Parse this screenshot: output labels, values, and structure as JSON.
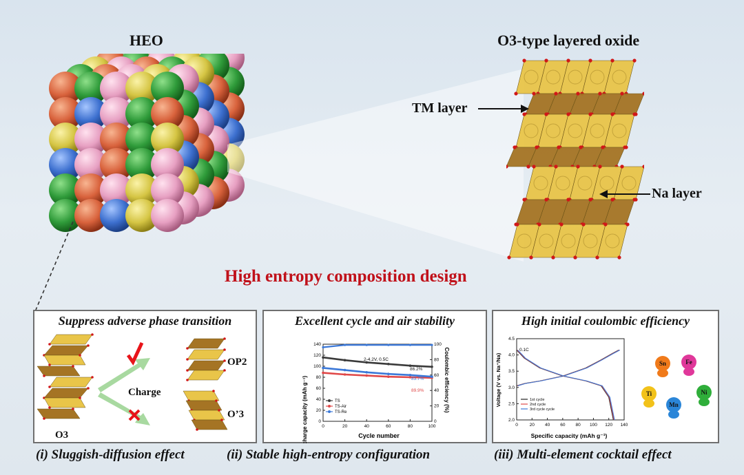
{
  "heo_title": "HEO",
  "o3_title": "O3-type layered oxide",
  "tm_layer_label": "TM layer",
  "na_layer_label": "Na layer",
  "center_title": "High entropy composition design",
  "colors": {
    "accent_red": "#c0111a",
    "yellow": "#d9cc55",
    "green": "#2f9b3a",
    "orange": "#d8623c",
    "pink": "#e7a0c2",
    "blue": "#3d70cf"
  },
  "panel1": {
    "title": "Suppress adverse phase transition",
    "charge_label": "Charge",
    "op2_label": "OP2",
    "o3p_label": "O’3",
    "o3_label": "O3"
  },
  "panel2": {
    "title": "Excellent cycle and air stability",
    "chart_data": {
      "type": "scatter",
      "xlabel": "Cycle number",
      "ylabel": "Discharge capacity (mAh g⁻¹)",
      "y2label": "Coulombic efficiency (%)",
      "xlim": [
        0,
        100
      ],
      "ylim": [
        0,
        140
      ],
      "y2lim": [
        0,
        100
      ],
      "xticks": [
        "0",
        "20",
        "40",
        "60",
        "80",
        "100"
      ],
      "yticks": [
        "0",
        "20",
        "40",
        "60",
        "80",
        "100",
        "120",
        "140"
      ],
      "y2ticks": [
        "0",
        "20",
        "40",
        "60",
        "80",
        "100"
      ],
      "condition": "2-4.2V, 0.5C",
      "annotations": [
        "86.2%",
        "83.7%",
        "89.9%"
      ],
      "series": [
        {
          "name": "TS",
          "color": "#3a3a3a",
          "x": [
            0,
            20,
            40,
            60,
            80,
            100
          ],
          "capacity": [
            116,
            111,
            107,
            104,
            101,
            99
          ]
        },
        {
          "name": "TS-Air",
          "color": "#e04848",
          "x": [
            0,
            20,
            40,
            60,
            80,
            100
          ],
          "capacity": [
            88,
            85,
            83,
            81,
            80,
            79
          ]
        },
        {
          "name": "TS-Re",
          "color": "#3b78d8",
          "x": [
            0,
            20,
            40,
            60,
            80,
            100
          ],
          "capacity": [
            97,
            93,
            89,
            86,
            84,
            81
          ]
        }
      ],
      "efficiency": {
        "x": [
          0,
          20,
          40,
          60,
          80,
          100
        ],
        "values": [
          96,
          99,
          99,
          99,
          99,
          99
        ]
      }
    }
  },
  "panel3": {
    "title": "High initial coulombic efficiency",
    "chart_data": {
      "type": "line",
      "xlabel": "Specific capacity (mAh g⁻¹)",
      "ylabel": "Voltage (V vs. Na⁺/Na)",
      "xlim": [
        0,
        140
      ],
      "ylim": [
        2.0,
        4.5
      ],
      "xticks": [
        "0",
        "20",
        "40",
        "60",
        "80",
        "100",
        "120",
        "140"
      ],
      "yticks": [
        "2.0",
        "2.5",
        "3.0",
        "3.5",
        "4.0",
        "4.5"
      ],
      "rate": "0.1C",
      "legend": [
        "1st cycle",
        "2nd cycle",
        "3rd cycle cycle"
      ],
      "series": [
        {
          "name": "charge",
          "x": [
            0,
            10,
            30,
            60,
            90,
            110,
            125,
            133
          ],
          "y": [
            3.05,
            3.12,
            3.2,
            3.35,
            3.6,
            3.85,
            4.05,
            4.15
          ]
        },
        {
          "name": "discharge",
          "x": [
            0,
            10,
            30,
            60,
            90,
            110,
            120,
            126
          ],
          "y": [
            4.15,
            3.9,
            3.6,
            3.35,
            3.2,
            3.05,
            2.7,
            2.0
          ]
        }
      ]
    },
    "elements": [
      "Sn",
      "Fe",
      "Ti",
      "Mn",
      "Ni"
    ]
  },
  "bottom": {
    "item1": "(i) Sluggish-diffusion effect",
    "item2": "(ii) Stable high-entropy configuration",
    "item3": "(iii) Multi-element cocktail effect"
  }
}
